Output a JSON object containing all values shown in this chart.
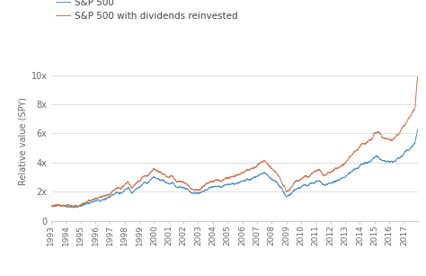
{
  "legend_labels": [
    "S&P 500",
    "S&P 500 with dividends reinvested"
  ],
  "line_colors": [
    "#4a90c4",
    "#d4724a"
  ],
  "ylabel": "Relative value (SPY)",
  "xlim_start": 1993.0,
  "xlim_end": 2017.92,
  "ylim": [
    0,
    11
  ],
  "yticks": [
    0,
    2,
    4,
    6,
    8,
    10
  ],
  "ytick_labels": [
    "0",
    "2x",
    "4x",
    "6x",
    "8x",
    "10x"
  ],
  "xtick_years": [
    1993,
    1994,
    1995,
    1996,
    1997,
    1998,
    1999,
    2000,
    2001,
    2002,
    2003,
    2004,
    2005,
    2006,
    2007,
    2008,
    2009,
    2010,
    2011,
    2012,
    2013,
    2014,
    2015,
    2016,
    2017
  ],
  "background_color": "#ffffff",
  "grid_color": "#d0d0d0"
}
